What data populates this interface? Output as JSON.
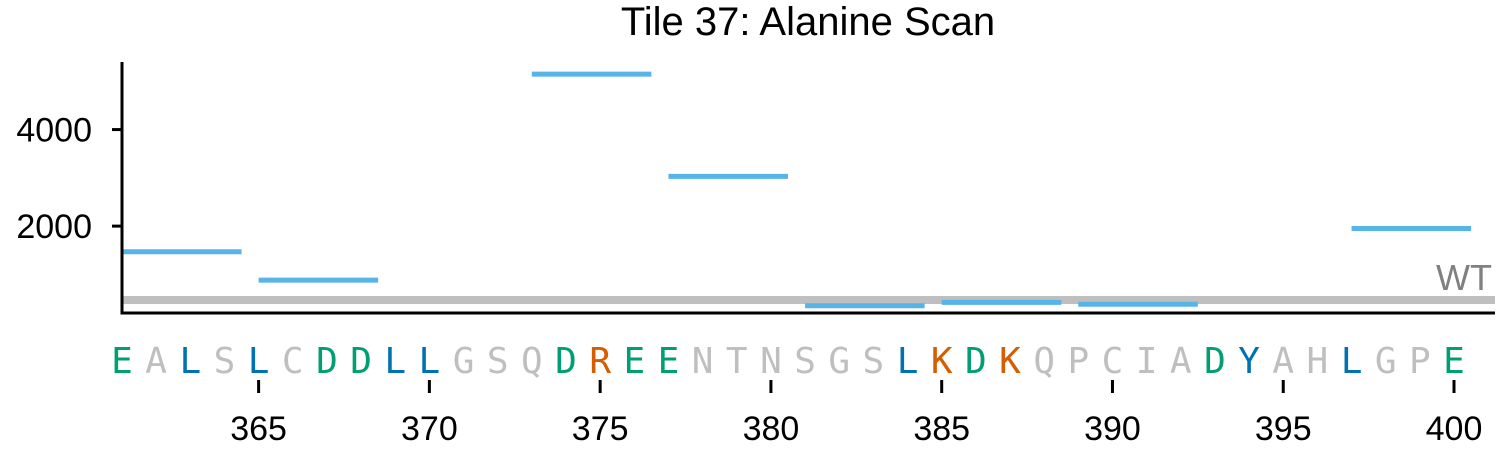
{
  "chart_data": {
    "type": "line",
    "title": "Tile 37: Alanine Scan",
    "xlabel": "",
    "ylabel": "",
    "xlim": [
      361.0,
      401.2
    ],
    "ylim": [
      200,
      5400
    ],
    "yticks": [
      2000,
      4000
    ],
    "xticks": [
      365,
      370,
      375,
      380,
      385,
      390,
      395,
      400
    ],
    "wildtype": {
      "label": "WT",
      "value": 470,
      "color": "#bfbfbf"
    },
    "series_color": "#56b4e9",
    "segments": [
      {
        "start": 361.0,
        "end": 364.5,
        "value": 1470
      },
      {
        "start": 365.0,
        "end": 368.5,
        "value": 880
      },
      {
        "start": 373.0,
        "end": 376.5,
        "value": 5150
      },
      {
        "start": 377.0,
        "end": 380.5,
        "value": 3030
      },
      {
        "start": 381.0,
        "end": 384.5,
        "value": 350
      },
      {
        "start": 385.0,
        "end": 388.5,
        "value": 420
      },
      {
        "start": 389.0,
        "end": 392.5,
        "value": 380
      },
      {
        "start": 397.0,
        "end": 400.5,
        "value": 1950
      }
    ],
    "sequence": {
      "first_position": 361,
      "residues": [
        "E",
        "A",
        "L",
        "S",
        "L",
        "C",
        "D",
        "D",
        "L",
        "L",
        "G",
        "S",
        "Q",
        "D",
        "R",
        "E",
        "E",
        "N",
        "T",
        "N",
        "S",
        "G",
        "S",
        "L",
        "K",
        "D",
        "K",
        "Q",
        "P",
        "C",
        "I",
        "A",
        "D",
        "Y",
        "A",
        "H",
        "L",
        "G",
        "P",
        "E"
      ],
      "colors": {
        "acidic": "#009e73",
        "basic": "#d55e00",
        "hydrophobic": "#0072b2",
        "other": "#bfbfbf"
      },
      "classes": {
        "E": "acidic",
        "D": "acidic",
        "K": "basic",
        "R": "basic",
        "L": "hydrophobic",
        "Y": "hydrophobic"
      }
    }
  }
}
